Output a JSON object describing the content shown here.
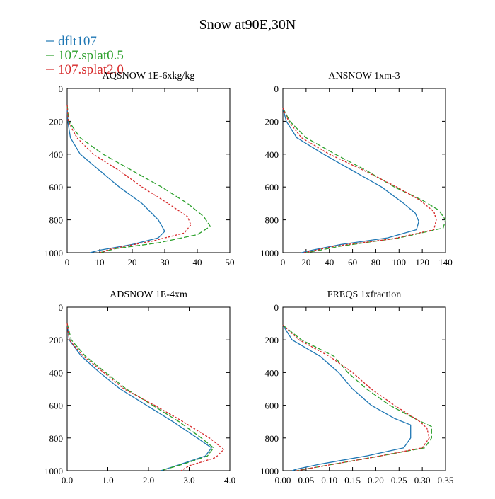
{
  "figure": {
    "title": "Snow at90E,30N",
    "legend": [
      {
        "name": "dflt107",
        "color": "#1f77b4",
        "dash": "solid"
      },
      {
        "name": "107.splat0.5",
        "color": "#2ca02c",
        "dash": "dashed"
      },
      {
        "name": "107.splat2.0",
        "color": "#d62728",
        "dash": "dotted"
      }
    ]
  },
  "chart_data": [
    {
      "type": "line",
      "title": "AQSNOW  1E-6xkg/kg",
      "xlabel": "",
      "ylabel": "",
      "xlim": [
        0,
        50
      ],
      "ylim": [
        1000,
        0
      ],
      "xticks": [
        0,
        10,
        20,
        30,
        40,
        50
      ],
      "xticklabels": [
        "0",
        "10",
        "20",
        "30",
        "40",
        "50"
      ],
      "yticks": [
        0,
        200,
        400,
        600,
        800,
        1000
      ],
      "yticklabels": [
        "0",
        "200",
        "400",
        "600",
        "800",
        "1000"
      ],
      "series": [
        {
          "name": "dflt107",
          "points": [
            [
              0,
              100
            ],
            [
              0.2,
              200
            ],
            [
              1,
              300
            ],
            [
              4,
              400
            ],
            [
              10,
              500
            ],
            [
              16,
              600
            ],
            [
              23,
              700
            ],
            [
              28,
              800
            ],
            [
              30,
              870
            ],
            [
              28,
              910
            ],
            [
              20,
              950
            ],
            [
              10,
              985
            ],
            [
              7,
              1000
            ]
          ]
        },
        {
          "name": "107.splat0.5",
          "points": [
            [
              0,
              100
            ],
            [
              0.5,
              200
            ],
            [
              4,
              300
            ],
            [
              11,
              400
            ],
            [
              20,
              500
            ],
            [
              29,
              600
            ],
            [
              37,
              700
            ],
            [
              42,
              780
            ],
            [
              44,
              840
            ],
            [
              40,
              890
            ],
            [
              28,
              940
            ],
            [
              15,
              975
            ],
            [
              10,
              1000
            ]
          ]
        },
        {
          "name": "107.splat2.0",
          "points": [
            [
              0,
              100
            ],
            [
              0.3,
              200
            ],
            [
              3,
              300
            ],
            [
              8,
              400
            ],
            [
              16,
              500
            ],
            [
              23,
              600
            ],
            [
              31,
              700
            ],
            [
              37,
              780
            ],
            [
              38,
              830
            ],
            [
              36,
              880
            ],
            [
              26,
              930
            ],
            [
              14,
              975
            ],
            [
              10,
              1000
            ]
          ]
        }
      ]
    },
    {
      "type": "line",
      "title": "ANSNOW  1xm-3",
      "xlabel": "",
      "ylabel": "",
      "xlim": [
        0,
        140
      ],
      "ylim": [
        1000,
        0
      ],
      "xticks": [
        0,
        20,
        40,
        60,
        80,
        100,
        120,
        140
      ],
      "xticklabels": [
        "0",
        "20",
        "40",
        "60",
        "80",
        "100",
        "120",
        "140"
      ],
      "yticks": [
        0,
        200,
        400,
        600,
        800,
        1000
      ],
      "yticklabels": [
        "0",
        "200",
        "400",
        "600",
        "800",
        "1000"
      ],
      "series": [
        {
          "name": "dflt107",
          "points": [
            [
              0,
              120
            ],
            [
              3,
              200
            ],
            [
              12,
              300
            ],
            [
              35,
              400
            ],
            [
              60,
              500
            ],
            [
              85,
              600
            ],
            [
              104,
              700
            ],
            [
              114,
              760
            ],
            [
              117,
              810
            ],
            [
              115,
              860
            ],
            [
              90,
              910
            ],
            [
              50,
              950
            ],
            [
              25,
              985
            ],
            [
              16,
              1000
            ]
          ]
        },
        {
          "name": "107.splat0.5",
          "points": [
            [
              0,
              120
            ],
            [
              6,
              200
            ],
            [
              20,
              300
            ],
            [
              45,
              400
            ],
            [
              72,
              500
            ],
            [
              96,
              600
            ],
            [
              120,
              680
            ],
            [
              134,
              740
            ],
            [
              140,
              800
            ],
            [
              138,
              850
            ],
            [
              100,
              910
            ],
            [
              50,
              960
            ],
            [
              28,
              990
            ],
            [
              20,
              1000
            ]
          ]
        },
        {
          "name": "107.splat2.0",
          "points": [
            [
              0,
              120
            ],
            [
              5,
              200
            ],
            [
              16,
              300
            ],
            [
              40,
              400
            ],
            [
              70,
              500
            ],
            [
              98,
              600
            ],
            [
              118,
              680
            ],
            [
              130,
              750
            ],
            [
              132,
              800
            ],
            [
              130,
              860
            ],
            [
              95,
              915
            ],
            [
              45,
              960
            ],
            [
              25,
              990
            ],
            [
              18,
              1000
            ]
          ]
        }
      ]
    },
    {
      "type": "line",
      "title": "ADSNOW  1E-4xm",
      "xlabel": "",
      "ylabel": "",
      "xlim": [
        0,
        4.0
      ],
      "ylim": [
        1000,
        0
      ],
      "xticks": [
        0,
        1,
        2,
        3,
        4
      ],
      "xticklabels": [
        "0.0",
        "1.0",
        "2.0",
        "3.0",
        "4.0"
      ],
      "yticks": [
        0,
        200,
        400,
        600,
        800,
        1000
      ],
      "yticklabels": [
        "0",
        "200",
        "400",
        "600",
        "800",
        "1000"
      ],
      "series": [
        {
          "name": "dflt107",
          "points": [
            [
              0,
              100
            ],
            [
              0.05,
              200
            ],
            [
              0.35,
              300
            ],
            [
              0.8,
              400
            ],
            [
              1.3,
              500
            ],
            [
              1.95,
              600
            ],
            [
              2.6,
              700
            ],
            [
              3.2,
              800
            ],
            [
              3.55,
              860
            ],
            [
              3.4,
              910
            ],
            [
              2.8,
              960
            ],
            [
              2.3,
              1000
            ]
          ]
        },
        {
          "name": "107.splat0.5",
          "points": [
            [
              0,
              100
            ],
            [
              0.1,
              200
            ],
            [
              0.45,
              300
            ],
            [
              0.95,
              400
            ],
            [
              1.45,
              500
            ],
            [
              2.1,
              600
            ],
            [
              2.75,
              700
            ],
            [
              3.3,
              800
            ],
            [
              3.6,
              860
            ],
            [
              3.45,
              910
            ],
            [
              2.85,
              960
            ],
            [
              2.3,
              1000
            ]
          ]
        },
        {
          "name": "107.splat2.0",
          "points": [
            [
              0,
              100
            ],
            [
              0.05,
              200
            ],
            [
              0.4,
              300
            ],
            [
              0.9,
              400
            ],
            [
              1.4,
              500
            ],
            [
              2.15,
              600
            ],
            [
              2.85,
              700
            ],
            [
              3.5,
              800
            ],
            [
              3.85,
              870
            ],
            [
              3.65,
              920
            ],
            [
              3.0,
              970
            ],
            [
              2.8,
              1000
            ]
          ]
        }
      ]
    },
    {
      "type": "line",
      "title": "FREQS  1xfraction",
      "xlabel": "",
      "ylabel": "",
      "xlim": [
        0,
        0.35
      ],
      "ylim": [
        1000,
        0
      ],
      "xticks": [
        0,
        0.05,
        0.1,
        0.15,
        0.2,
        0.25,
        0.3,
        0.35
      ],
      "xticklabels": [
        "0.00",
        "0.05",
        "0.10",
        "0.15",
        "0.20",
        "0.25",
        "0.30",
        "0.35"
      ],
      "yticks": [
        0,
        200,
        400,
        600,
        800,
        1000
      ],
      "yticklabels": [
        "0",
        "200",
        "400",
        "600",
        "800",
        "1000"
      ],
      "series": [
        {
          "name": "dflt107",
          "points": [
            [
              0,
              110
            ],
            [
              0.02,
              200
            ],
            [
              0.08,
              300
            ],
            [
              0.12,
              400
            ],
            [
              0.15,
              500
            ],
            [
              0.19,
              600
            ],
            [
              0.24,
              680
            ],
            [
              0.275,
              720
            ],
            [
              0.275,
              800
            ],
            [
              0.26,
              860
            ],
            [
              0.18,
              910
            ],
            [
              0.08,
              960
            ],
            [
              0.03,
              990
            ],
            [
              0.02,
              1000
            ]
          ]
        },
        {
          "name": "107.splat0.5",
          "points": [
            [
              0,
              110
            ],
            [
              0.04,
              200
            ],
            [
              0.11,
              300
            ],
            [
              0.14,
              400
            ],
            [
              0.18,
              500
            ],
            [
              0.23,
              600
            ],
            [
              0.29,
              690
            ],
            [
              0.32,
              730
            ],
            [
              0.32,
              800
            ],
            [
              0.305,
              860
            ],
            [
              0.2,
              915
            ],
            [
              0.1,
              965
            ],
            [
              0.04,
              995
            ],
            [
              0.03,
              1000
            ]
          ]
        },
        {
          "name": "107.splat2.0",
          "points": [
            [
              0,
              110
            ],
            [
              0.035,
              200
            ],
            [
              0.1,
              300
            ],
            [
              0.15,
              400
            ],
            [
              0.19,
              500
            ],
            [
              0.24,
              600
            ],
            [
              0.295,
              700
            ],
            [
              0.31,
              740
            ],
            [
              0.315,
              800
            ],
            [
              0.3,
              860
            ],
            [
              0.2,
              915
            ],
            [
              0.1,
              965
            ],
            [
              0.04,
              995
            ],
            [
              0.03,
              1000
            ]
          ]
        }
      ]
    }
  ]
}
